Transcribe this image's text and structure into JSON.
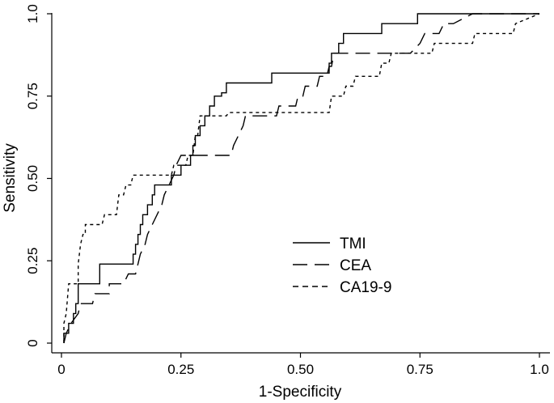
{
  "chart_data": {
    "type": "line",
    "title": "",
    "xlabel": "1-Specificity",
    "ylabel": "Sensitivity",
    "xlim": [
      0,
      1
    ],
    "ylim": [
      0,
      1
    ],
    "xticks": [
      0,
      0.25,
      0.5,
      0.75,
      1
    ],
    "xtick_labels": [
      "0",
      "0.25",
      "0.50",
      "0.75",
      "1.0"
    ],
    "yticks": [
      0,
      0.25,
      0.5,
      0.75,
      1
    ],
    "ytick_labels": [
      "0",
      "0.25",
      "0.50",
      "0.75",
      "1.0"
    ],
    "legend_position": "center-right",
    "series": [
      {
        "name": "TMI",
        "style": "solid",
        "points": [
          [
            0.005,
            0
          ],
          [
            0.005,
            0.03
          ],
          [
            0.015,
            0.03
          ],
          [
            0.015,
            0.06
          ],
          [
            0.025,
            0.06
          ],
          [
            0.025,
            0.09
          ],
          [
            0.03,
            0.09
          ],
          [
            0.03,
            0.12
          ],
          [
            0.035,
            0.12
          ],
          [
            0.035,
            0.18
          ],
          [
            0.08,
            0.18
          ],
          [
            0.08,
            0.24
          ],
          [
            0.15,
            0.24
          ],
          [
            0.15,
            0.27
          ],
          [
            0.155,
            0.27
          ],
          [
            0.155,
            0.3
          ],
          [
            0.16,
            0.3
          ],
          [
            0.16,
            0.33
          ],
          [
            0.165,
            0.33
          ],
          [
            0.165,
            0.36
          ],
          [
            0.17,
            0.36
          ],
          [
            0.17,
            0.39
          ],
          [
            0.18,
            0.39
          ],
          [
            0.18,
            0.42
          ],
          [
            0.19,
            0.42
          ],
          [
            0.19,
            0.45
          ],
          [
            0.195,
            0.45
          ],
          [
            0.195,
            0.48
          ],
          [
            0.23,
            0.48
          ],
          [
            0.23,
            0.51
          ],
          [
            0.25,
            0.51
          ],
          [
            0.25,
            0.54
          ],
          [
            0.27,
            0.54
          ],
          [
            0.27,
            0.57
          ],
          [
            0.275,
            0.57
          ],
          [
            0.275,
            0.6
          ],
          [
            0.28,
            0.6
          ],
          [
            0.28,
            0.63
          ],
          [
            0.29,
            0.63
          ],
          [
            0.29,
            0.66
          ],
          [
            0.3,
            0.66
          ],
          [
            0.3,
            0.69
          ],
          [
            0.31,
            0.69
          ],
          [
            0.31,
            0.72
          ],
          [
            0.32,
            0.72
          ],
          [
            0.32,
            0.75
          ],
          [
            0.335,
            0.75
          ],
          [
            0.335,
            0.76
          ],
          [
            0.345,
            0.76
          ],
          [
            0.345,
            0.79
          ],
          [
            0.44,
            0.79
          ],
          [
            0.44,
            0.82
          ],
          [
            0.56,
            0.82
          ],
          [
            0.56,
            0.85
          ],
          [
            0.565,
            0.85
          ],
          [
            0.565,
            0.88
          ],
          [
            0.58,
            0.88
          ],
          [
            0.58,
            0.91
          ],
          [
            0.59,
            0.91
          ],
          [
            0.59,
            0.94
          ],
          [
            0.67,
            0.94
          ],
          [
            0.67,
            0.97
          ],
          [
            0.745,
            0.97
          ],
          [
            0.745,
            1.0
          ],
          [
            1.0,
            1.0
          ]
        ]
      },
      {
        "name": "CEA",
        "style": "longdash",
        "points": [
          [
            0.005,
            0
          ],
          [
            0.01,
            0.03
          ],
          [
            0.02,
            0.06
          ],
          [
            0.035,
            0.09
          ],
          [
            0.04,
            0.12
          ],
          [
            0.065,
            0.12
          ],
          [
            0.07,
            0.15
          ],
          [
            0.1,
            0.15
          ],
          [
            0.1,
            0.18
          ],
          [
            0.13,
            0.18
          ],
          [
            0.14,
            0.21
          ],
          [
            0.155,
            0.21
          ],
          [
            0.16,
            0.24
          ],
          [
            0.165,
            0.27
          ],
          [
            0.175,
            0.3
          ],
          [
            0.18,
            0.33
          ],
          [
            0.19,
            0.36
          ],
          [
            0.2,
            0.39
          ],
          [
            0.21,
            0.42
          ],
          [
            0.215,
            0.45
          ],
          [
            0.225,
            0.48
          ],
          [
            0.235,
            0.51
          ],
          [
            0.24,
            0.54
          ],
          [
            0.25,
            0.57
          ],
          [
            0.355,
            0.57
          ],
          [
            0.36,
            0.6
          ],
          [
            0.37,
            0.63
          ],
          [
            0.38,
            0.66
          ],
          [
            0.385,
            0.69
          ],
          [
            0.45,
            0.69
          ],
          [
            0.455,
            0.72
          ],
          [
            0.49,
            0.72
          ],
          [
            0.495,
            0.75
          ],
          [
            0.505,
            0.75
          ],
          [
            0.51,
            0.78
          ],
          [
            0.535,
            0.78
          ],
          [
            0.54,
            0.81
          ],
          [
            0.555,
            0.81
          ],
          [
            0.56,
            0.84
          ],
          [
            0.565,
            0.84
          ],
          [
            0.57,
            0.88
          ],
          [
            0.73,
            0.88
          ],
          [
            0.75,
            0.91
          ],
          [
            0.76,
            0.94
          ],
          [
            0.79,
            0.94
          ],
          [
            0.8,
            0.97
          ],
          [
            0.82,
            0.97
          ],
          [
            0.86,
            1.0
          ],
          [
            1.0,
            1.0
          ]
        ]
      },
      {
        "name": "CA19-9",
        "style": "dashed",
        "points": [
          [
            0.005,
            0
          ],
          [
            0.005,
            0.06
          ],
          [
            0.01,
            0.09
          ],
          [
            0.015,
            0.18
          ],
          [
            0.035,
            0.18
          ],
          [
            0.035,
            0.24
          ],
          [
            0.04,
            0.3
          ],
          [
            0.045,
            0.33
          ],
          [
            0.05,
            0.33
          ],
          [
            0.05,
            0.36
          ],
          [
            0.085,
            0.36
          ],
          [
            0.09,
            0.39
          ],
          [
            0.115,
            0.39
          ],
          [
            0.12,
            0.45
          ],
          [
            0.13,
            0.45
          ],
          [
            0.135,
            0.48
          ],
          [
            0.145,
            0.48
          ],
          [
            0.15,
            0.51
          ],
          [
            0.23,
            0.51
          ],
          [
            0.235,
            0.54
          ],
          [
            0.26,
            0.54
          ],
          [
            0.265,
            0.57
          ],
          [
            0.275,
            0.57
          ],
          [
            0.28,
            0.63
          ],
          [
            0.285,
            0.63
          ],
          [
            0.29,
            0.69
          ],
          [
            0.345,
            0.69
          ],
          [
            0.35,
            0.7
          ],
          [
            0.56,
            0.7
          ],
          [
            0.565,
            0.75
          ],
          [
            0.59,
            0.75
          ],
          [
            0.595,
            0.78
          ],
          [
            0.61,
            0.78
          ],
          [
            0.615,
            0.81
          ],
          [
            0.665,
            0.81
          ],
          [
            0.67,
            0.85
          ],
          [
            0.685,
            0.85
          ],
          [
            0.69,
            0.88
          ],
          [
            0.775,
            0.88
          ],
          [
            0.78,
            0.91
          ],
          [
            0.86,
            0.91
          ],
          [
            0.865,
            0.94
          ],
          [
            0.945,
            0.94
          ],
          [
            0.95,
            0.97
          ],
          [
            1.0,
            1.0
          ]
        ]
      }
    ]
  }
}
